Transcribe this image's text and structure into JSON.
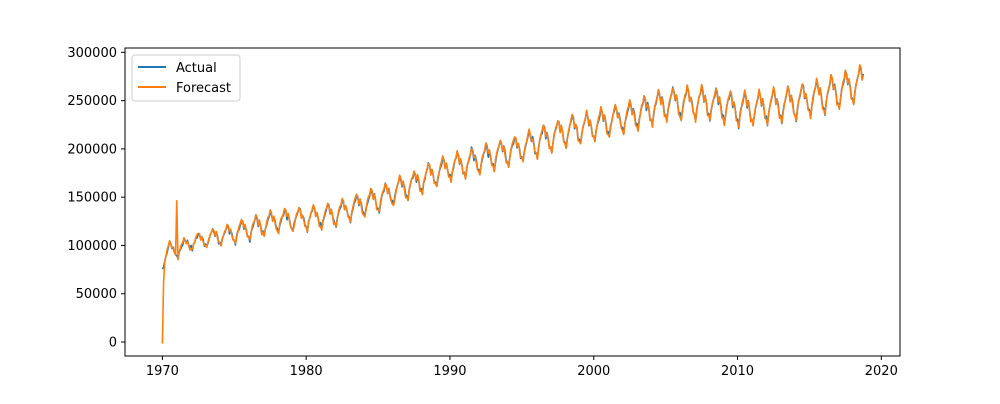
{
  "chart_data": {
    "type": "line",
    "title": "",
    "xlabel": "",
    "ylabel": "",
    "xlim": [
      1967.4,
      2021.3
    ],
    "ylim": [
      -14500,
      304500
    ],
    "xticks": [
      1970,
      1980,
      1990,
      2000,
      2010,
      2020
    ],
    "yticks": [
      0,
      50000,
      100000,
      150000,
      200000,
      250000,
      300000
    ],
    "grid": false,
    "legend": {
      "position": "top-left",
      "entries": [
        "Actual",
        "Forecast"
      ]
    },
    "frequency": "monthly",
    "start": 1970.0,
    "end": 2018.75,
    "series": [
      {
        "name": "Actual",
        "color": "#1f77b4",
        "seasonal_amplitude": 11000,
        "trend": [
          [
            1970.0,
            80000
          ],
          [
            1970.5,
            97000
          ],
          [
            1971.0,
            93000
          ],
          [
            1972.0,
            103000
          ],
          [
            1975.0,
            112000
          ],
          [
            1978.0,
            125000
          ],
          [
            1980.0,
            127000
          ],
          [
            1982.0,
            132000
          ],
          [
            1985.0,
            147000
          ],
          [
            1988.0,
            167000
          ],
          [
            1990.0,
            180000
          ],
          [
            1993.0,
            192000
          ],
          [
            1995.0,
            200000
          ],
          [
            1998.0,
            217000
          ],
          [
            2000.0,
            223000
          ],
          [
            2003.0,
            235000
          ],
          [
            2005.0,
            246000
          ],
          [
            2008.0,
            247000
          ],
          [
            2010.0,
            240000
          ],
          [
            2013.0,
            244000
          ],
          [
            2016.0,
            254000
          ],
          [
            2018.75,
            268000
          ]
        ]
      },
      {
        "name": "Forecast",
        "color": "#ff7f0e",
        "seasonal_amplitude": 11000,
        "start_value": 0,
        "spike": {
          "x": 1971.0,
          "y": 148000
        },
        "trend": [
          [
            1970.0,
            80000
          ],
          [
            1970.5,
            97000
          ],
          [
            1971.0,
            93000
          ],
          [
            1972.0,
            103000
          ],
          [
            1975.0,
            112000
          ],
          [
            1978.0,
            125000
          ],
          [
            1980.0,
            127000
          ],
          [
            1982.0,
            132000
          ],
          [
            1985.0,
            147000
          ],
          [
            1988.0,
            167000
          ],
          [
            1990.0,
            180000
          ],
          [
            1993.0,
            192000
          ],
          [
            1995.0,
            200000
          ],
          [
            1998.0,
            217000
          ],
          [
            2000.0,
            223000
          ],
          [
            2003.0,
            235000
          ],
          [
            2005.0,
            246000
          ],
          [
            2008.0,
            247000
          ],
          [
            2010.0,
            240000
          ],
          [
            2013.0,
            244000
          ],
          [
            2016.0,
            254000
          ],
          [
            2018.75,
            268000
          ]
        ]
      }
    ]
  }
}
